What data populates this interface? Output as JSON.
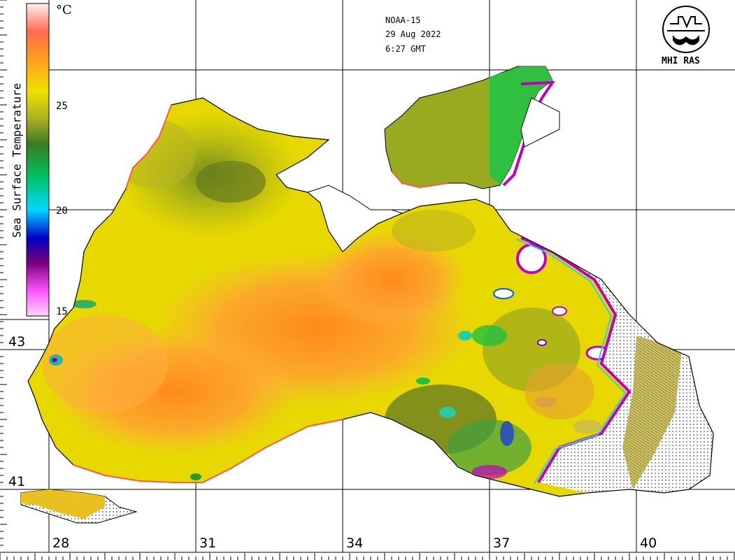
{
  "header": {
    "satellite": "NOAA-15",
    "date": "29 Aug 2022",
    "time": "6:27 GMT"
  },
  "logo": {
    "text": "MHI RAS",
    "icon": "mhi-ras-logo-icon"
  },
  "colorbar": {
    "title": "Sea Surface Temperature",
    "unit": "°C",
    "ticks": [
      "25",
      "20",
      "15"
    ],
    "min": 15,
    "max": 30,
    "colors": [
      "#ffd6ff",
      "#ff55ff",
      "#7a007a",
      "#0000c8",
      "#00d8ff",
      "#00c060",
      "#3a7a20",
      "#a8b020",
      "#f0e000",
      "#ff9a20",
      "#ff6a50",
      "#ffc0c0",
      "#ffffff"
    ]
  },
  "axes": {
    "longitude_labels": [
      "28",
      "31",
      "34",
      "37",
      "40"
    ],
    "latitude_labels": [
      "43",
      "41"
    ]
  },
  "colors": {
    "land": "#ffffff",
    "coast": "#000000",
    "warm": "#ff9a20",
    "mid": "#e8dc00",
    "cool": "#7a8a20",
    "green": "#30c030",
    "cloud": "#ffffff"
  }
}
